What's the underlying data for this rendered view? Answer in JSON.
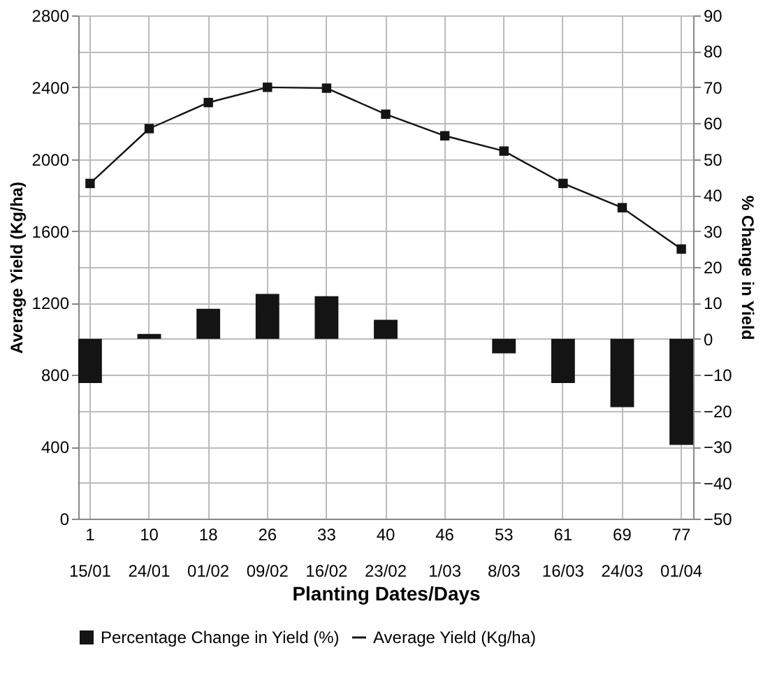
{
  "chart_data": {
    "type": "bar",
    "categories": [
      "1\n15/01",
      "10\n24/01",
      "18\n01/02",
      "26\n09/02",
      "33\n16/02",
      "40\n23/02",
      "46\n1/03",
      "53\n8/03",
      "61\n16/03",
      "69\n24/03",
      "77\n01/04"
    ],
    "xlabel": "Planting Dates/Days",
    "ylabel": "Average Yield (Kg/ha)",
    "y2label": "% Change in Yield",
    "series": [
      {
        "name": "Percentage Change in Yield (%)",
        "axis": "y2",
        "color": "#141414",
        "values": [
          -12.3,
          1.4,
          8.4,
          12.5,
          11.9,
          5.3,
          0,
          -4.0,
          -12.3,
          -19.0,
          -29.5
        ]
      },
      {
        "name": "Average Yield (Kg/ha)",
        "type": "line",
        "color": "#141414",
        "marker": "square",
        "values": [
          1865,
          2170,
          2315,
          2400,
          2395,
          2250,
          2130,
          2045,
          1865,
          1730,
          1500
        ]
      }
    ],
    "ylim": [
      0,
      2800
    ],
    "yticks": [
      0,
      400,
      800,
      1200,
      1600,
      2000,
      2400,
      2800
    ],
    "y2lim": [
      -50,
      90
    ],
    "y2ticks": [
      -50,
      -40,
      -30,
      -20,
      -10,
      0,
      10,
      20,
      30,
      40,
      50,
      60,
      70,
      80,
      90
    ],
    "grid": true,
    "legend": "bottom"
  }
}
